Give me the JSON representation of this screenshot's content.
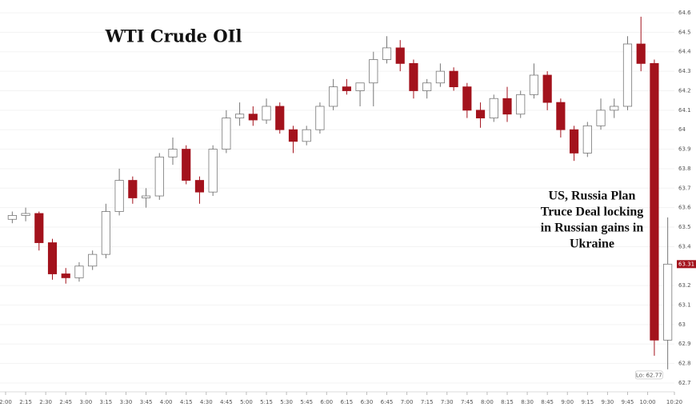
{
  "chart_data": {
    "type": "candlestick",
    "title": "WTI Crude OIl",
    "annotation": [
      "US, Russia Plan",
      "Truce Deal locking",
      "in Russian gains in",
      "Ukraine"
    ],
    "low_label": "Lo: 62.77",
    "x": [
      "2:00",
      "2:10",
      "2:20",
      "2:30",
      "2:40",
      "2:50",
      "3:00",
      "3:10",
      "3:20",
      "3:30",
      "3:40",
      "3:50",
      "4:00",
      "4:10",
      "4:20",
      "4:30",
      "4:40",
      "4:50",
      "5:00",
      "5:10",
      "5:20",
      "5:30",
      "5:40",
      "5:50",
      "6:00",
      "6:10",
      "6:20",
      "6:30",
      "6:40",
      "6:50",
      "7:00",
      "7:10",
      "7:20",
      "7:30",
      "7:40",
      "7:50",
      "8:00",
      "8:10",
      "8:20",
      "8:30",
      "8:40",
      "8:50",
      "9:00",
      "9:10",
      "9:20",
      "9:30",
      "9:40",
      "9:50",
      "10:00",
      "10:10"
    ],
    "open": [
      63.54,
      63.56,
      63.57,
      63.42,
      63.26,
      63.24,
      63.3,
      63.36,
      63.58,
      63.74,
      63.65,
      63.66,
      63.86,
      63.9,
      63.74,
      63.68,
      63.9,
      64.06,
      64.08,
      64.05,
      64.12,
      64.0,
      63.94,
      64.0,
      64.12,
      64.22,
      64.2,
      64.24,
      64.36,
      64.42,
      64.34,
      64.2,
      64.24,
      64.3,
      64.22,
      64.1,
      64.06,
      64.16,
      64.08,
      64.18,
      64.28,
      64.14,
      64.0,
      63.88,
      64.02,
      64.1,
      64.12,
      64.44,
      64.34,
      62.92
    ],
    "high": [
      63.58,
      63.6,
      63.58,
      63.44,
      63.29,
      63.32,
      63.38,
      63.62,
      63.8,
      63.76,
      63.7,
      63.88,
      63.96,
      63.92,
      63.76,
      63.92,
      64.1,
      64.14,
      64.12,
      64.16,
      64.14,
      64.02,
      64.02,
      64.14,
      64.26,
      64.26,
      64.24,
      64.4,
      64.48,
      64.46,
      64.36,
      64.26,
      64.34,
      64.32,
      64.24,
      64.14,
      64.18,
      64.22,
      64.2,
      64.34,
      64.3,
      64.16,
      64.02,
      64.04,
      64.16,
      64.16,
      64.48,
      64.58,
      64.36,
      63.55
    ],
    "low": [
      63.52,
      63.53,
      63.38,
      63.23,
      63.21,
      63.22,
      63.28,
      63.34,
      63.56,
      63.62,
      63.6,
      63.64,
      63.82,
      63.72,
      63.62,
      63.66,
      63.88,
      64.02,
      64.02,
      64.03,
      63.98,
      63.88,
      63.92,
      63.98,
      64.1,
      64.18,
      64.12,
      64.12,
      64.34,
      64.3,
      64.16,
      64.16,
      64.22,
      64.2,
      64.06,
      64.01,
      64.04,
      64.04,
      64.06,
      64.16,
      64.1,
      63.96,
      63.84,
      63.86,
      64.0,
      64.06,
      64.1,
      64.3,
      62.84,
      62.77
    ],
    "close": [
      63.56,
      63.57,
      63.42,
      63.26,
      63.24,
      63.3,
      63.36,
      63.58,
      63.74,
      63.65,
      63.66,
      63.86,
      63.9,
      63.74,
      63.68,
      63.9,
      64.06,
      64.08,
      64.05,
      64.12,
      64.0,
      63.94,
      64.0,
      64.12,
      64.22,
      64.2,
      64.24,
      64.36,
      64.42,
      64.34,
      64.2,
      64.24,
      64.3,
      64.22,
      64.1,
      64.06,
      64.16,
      64.08,
      64.18,
      64.28,
      64.14,
      64.0,
      63.88,
      64.02,
      64.1,
      64.12,
      64.44,
      64.34,
      62.92,
      63.31
    ],
    "up_color": "#ffffff",
    "down_color": "#a3121c",
    "xlim": [
      "2:00",
      "10:20"
    ],
    "xticks": [
      "2:00",
      "2:15",
      "2:30",
      "2:45",
      "3:00",
      "3:15",
      "3:30",
      "3:45",
      "4:00",
      "4:15",
      "4:30",
      "4:45",
      "5:00",
      "5:15",
      "5:30",
      "5:45",
      "6:00",
      "6:15",
      "6:30",
      "6:45",
      "7:00",
      "7:15",
      "7:30",
      "7:45",
      "8:00",
      "8:15",
      "8:30",
      "8:45",
      "9:00",
      "9:15",
      "9:30",
      "9:45",
      "10:00",
      "10:20"
    ],
    "ylim": [
      62.66,
      64.66
    ],
    "yticks": [
      62.7,
      62.8,
      62.9,
      63,
      63.1,
      63.2,
      63.3,
      63.4,
      63.5,
      63.6,
      63.7,
      63.8,
      63.9,
      64,
      64.1,
      64.2,
      64.3,
      64.4,
      64.5,
      64.6
    ],
    "grid": true
  }
}
